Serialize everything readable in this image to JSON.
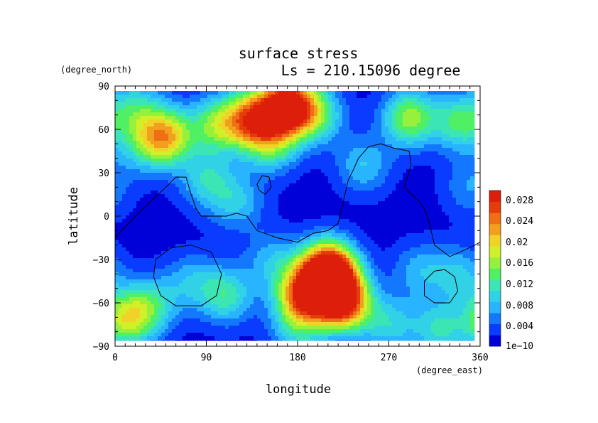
{
  "chart_data": {
    "type": "heatmap",
    "title": "surface stress",
    "subtitle": "Ls = 210.15096 degree",
    "xlabel": "longitude",
    "ylabel": "latitude",
    "x_unit": "(degree_east)",
    "y_unit": "(degree_north)",
    "xlim": [
      0,
      360
    ],
    "ylim": [
      -90,
      90
    ],
    "x_ticks": [
      "0",
      "90",
      "180",
      "270",
      "360"
    ],
    "y_ticks": [
      "90",
      "60",
      "30",
      "0",
      "−30",
      "−60",
      "−90"
    ],
    "colorbar": {
      "labels": [
        "1e−10",
        "0.004",
        "0.008",
        "0.012",
        "0.016",
        "0.02",
        "0.024",
        "0.028"
      ],
      "colors": [
        "#0000d9",
        "#0a3cff",
        "#1478ff",
        "#28b4ff",
        "#32d2e6",
        "#3ce6b4",
        "#50f064",
        "#96f03c",
        "#d2f028",
        "#f0d228",
        "#f0a01e",
        "#f06e14",
        "#e63c0a",
        "#dc1e0a"
      ]
    },
    "background_value": 0.001,
    "hotspots": [
      {
        "lon": 170,
        "lat": 76,
        "value": 0.029
      },
      {
        "lon": 135,
        "lat": 67,
        "value": 0.02
      },
      {
        "lon": 100,
        "lat": 63,
        "value": 0.012
      },
      {
        "lon": 200,
        "lat": 70,
        "value": 0.01
      },
      {
        "lon": 290,
        "lat": 68,
        "value": 0.014
      },
      {
        "lon": 340,
        "lat": 65,
        "value": 0.011
      },
      {
        "lon": 50,
        "lat": 55,
        "value": 0.018
      },
      {
        "lon": 20,
        "lat": 75,
        "value": 0.008
      },
      {
        "lon": 25,
        "lat": 50,
        "value": 0.006
      },
      {
        "lon": 155,
        "lat": 50,
        "value": 0.01
      },
      {
        "lon": 90,
        "lat": 25,
        "value": 0.008
      },
      {
        "lon": 120,
        "lat": 10,
        "value": 0.007
      },
      {
        "lon": 245,
        "lat": 35,
        "value": 0.007
      },
      {
        "lon": 210,
        "lat": -37,
        "value": 0.029
      },
      {
        "lon": 185,
        "lat": -55,
        "value": 0.021
      },
      {
        "lon": 225,
        "lat": -60,
        "value": 0.022
      },
      {
        "lon": 215,
        "lat": -50,
        "value": 0.012
      },
      {
        "lon": 10,
        "lat": -72,
        "value": 0.014
      },
      {
        "lon": 35,
        "lat": -62,
        "value": 0.009
      },
      {
        "lon": 110,
        "lat": -55,
        "value": 0.01
      },
      {
        "lon": 75,
        "lat": -45,
        "value": 0.006
      },
      {
        "lon": 155,
        "lat": -30,
        "value": 0.006
      },
      {
        "lon": 300,
        "lat": -38,
        "value": 0.006
      },
      {
        "lon": 340,
        "lat": -40,
        "value": 0.007
      },
      {
        "lon": 270,
        "lat": -75,
        "value": 0.008
      },
      {
        "lon": 180,
        "lat": -80,
        "value": 0.007
      },
      {
        "lon": 320,
        "lat": -78,
        "value": 0.009
      },
      {
        "lon": 350,
        "lat": 20,
        "value": 0.005
      }
    ],
    "contours": [
      {
        "name": "dichotomy",
        "closed": false,
        "points": [
          [
            0,
            -15
          ],
          [
            20,
            0
          ],
          [
            35,
            10
          ],
          [
            50,
            20
          ],
          [
            60,
            27
          ],
          [
            70,
            27
          ],
          [
            75,
            15
          ],
          [
            80,
            5
          ],
          [
            85,
            0
          ],
          [
            100,
            0
          ],
          [
            110,
            0
          ],
          [
            120,
            2
          ],
          [
            130,
            0
          ],
          [
            140,
            -10
          ],
          [
            160,
            -15
          ],
          [
            180,
            -18
          ],
          [
            195,
            -12
          ],
          [
            210,
            -10
          ],
          [
            220,
            -5
          ],
          [
            225,
            10
          ],
          [
            230,
            25
          ],
          [
            235,
            32
          ],
          [
            240,
            40
          ],
          [
            250,
            48
          ],
          [
            262,
            50
          ],
          [
            275,
            47
          ],
          [
            290,
            45
          ],
          [
            292,
            35
          ],
          [
            285,
            20
          ],
          [
            300,
            10
          ],
          [
            305,
            5
          ],
          [
            310,
            -5
          ],
          [
            315,
            -20
          ],
          [
            330,
            -28
          ],
          [
            340,
            -25
          ],
          [
            355,
            -20
          ],
          [
            360,
            -18
          ]
        ]
      },
      {
        "name": "hellas",
        "closed": true,
        "points": [
          [
            40,
            -30
          ],
          [
            55,
            -22
          ],
          [
            75,
            -20
          ],
          [
            95,
            -25
          ],
          [
            105,
            -40
          ],
          [
            100,
            -55
          ],
          [
            85,
            -62
          ],
          [
            60,
            -62
          ],
          [
            45,
            -55
          ],
          [
            38,
            -42
          ]
        ]
      },
      {
        "name": "argyre",
        "closed": true,
        "points": [
          [
            305,
            -45
          ],
          [
            315,
            -38
          ],
          [
            325,
            -37
          ],
          [
            335,
            -42
          ],
          [
            338,
            -52
          ],
          [
            330,
            -60
          ],
          [
            315,
            -60
          ],
          [
            305,
            -55
          ]
        ]
      },
      {
        "name": "elysium",
        "closed": true,
        "points": [
          [
            140,
            22
          ],
          [
            145,
            28
          ],
          [
            152,
            27
          ],
          [
            154,
            20
          ],
          [
            148,
            15
          ],
          [
            142,
            18
          ]
        ]
      }
    ]
  }
}
